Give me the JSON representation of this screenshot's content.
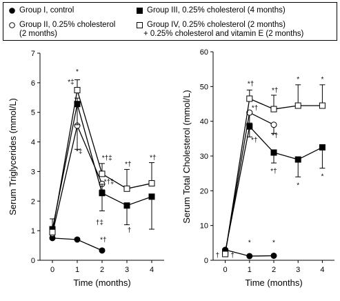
{
  "legend": {
    "items": [
      {
        "text": "Group I, control",
        "text2": "",
        "marker": "circle",
        "fill": "#000000"
      },
      {
        "text": "Group II, 0.25% cholesterol",
        "text2": "(2 months)",
        "marker": "circle",
        "fill": "#ffffff"
      },
      {
        "text": "Group III, 0.25% cholesterol (4 months)",
        "text2": "",
        "marker": "square",
        "fill": "#000000"
      },
      {
        "text": "Group IV, 0.25% cholesterol (2 months)",
        "text2": "+ 0.25% cholesterol and vitamin E (2 months)",
        "marker": "square",
        "fill": "#ffffff"
      }
    ]
  },
  "chart_data": [
    {
      "type": "line",
      "title": "",
      "xlabel": "Time (months)",
      "ylabel": "Serum Triglycerides (mmol/L)",
      "xlim": [
        -0.5,
        4.5
      ],
      "ylim": [
        0,
        7
      ],
      "xticks": [
        0,
        1,
        2,
        3,
        4
      ],
      "yticks": [
        0,
        1,
        2,
        3,
        4,
        5,
        6,
        7
      ],
      "grid": false,
      "series": [
        {
          "name": "Group I, control",
          "marker": "circle",
          "fill": "#000000",
          "x": [
            0,
            1,
            2
          ],
          "y": [
            0.75,
            0.7,
            0.33
          ],
          "err_up": [
            0.1,
            0.05,
            0.05
          ],
          "err_down": [
            0,
            0,
            0
          ]
        },
        {
          "name": "Group II, 0.25% cholesterol (2 months)",
          "marker": "circle",
          "fill": "#ffffff",
          "x": [
            0,
            1,
            2
          ],
          "y": [
            0.9,
            4.55,
            2.58
          ],
          "err_up": [
            0,
            0,
            0
          ],
          "err_down": [
            0.1,
            0.8,
            0.2
          ]
        },
        {
          "name": "Group III, 0.25% cholesterol (4 months)",
          "marker": "square",
          "fill": "#000000",
          "x": [
            0,
            1,
            2,
            3,
            4
          ],
          "y": [
            1.05,
            5.28,
            2.27,
            1.85,
            2.15
          ],
          "err_up": [
            0.35,
            0.2,
            0.3,
            0,
            0
          ],
          "err_down": [
            0,
            0.7,
            0.6,
            0.65,
            1.1
          ]
        },
        {
          "name": "Group IV, 0.25% cholesterol (2 months) + 0.25% cholesterol and vitamin E (2 months)",
          "marker": "square",
          "fill": "#ffffff",
          "x": [
            0,
            1,
            2,
            3,
            4
          ],
          "y": [
            0.95,
            5.75,
            2.92,
            2.42,
            2.6
          ],
          "err_up": [
            0,
            0.35,
            0.35,
            0.65,
            0.7
          ],
          "err_down": [
            0,
            0,
            0,
            0,
            0
          ]
        }
      ],
      "annotations": [
        {
          "x": 1,
          "y": 6.3,
          "text": "*"
        },
        {
          "x": 0.75,
          "y": 5.95,
          "text": "*‡"
        },
        {
          "x": 1.08,
          "y": 3.6,
          "text": "*‡"
        },
        {
          "x": 2.2,
          "y": 3.38,
          "text": "*†‡"
        },
        {
          "x": 2.28,
          "y": 2.58,
          "text": "*†‡"
        },
        {
          "x": 1.9,
          "y": 1.2,
          "text": "†‡"
        },
        {
          "x": 3.05,
          "y": 3.17,
          "text": "*†"
        },
        {
          "x": 3.1,
          "y": 0.95,
          "text": "†"
        },
        {
          "x": 4.05,
          "y": 3.4,
          "text": "*†"
        },
        {
          "x": 2.05,
          "y": 0.62,
          "text": "*†"
        }
      ]
    },
    {
      "type": "line",
      "title": "",
      "xlabel": "Time (months)",
      "ylabel": "Serum Total Cholesterol (mmol/L)",
      "xlim": [
        -0.5,
        4.5
      ],
      "ylim": [
        0,
        60
      ],
      "xticks": [
        0,
        1,
        2,
        3,
        4
      ],
      "yticks": [
        0,
        10,
        20,
        30,
        40,
        50,
        60
      ],
      "grid": false,
      "series": [
        {
          "name": "Group I, control",
          "marker": "circle",
          "fill": "#000000",
          "x": [
            0,
            1,
            2
          ],
          "y": [
            3.0,
            1.2,
            1.3
          ],
          "err_up": [
            0,
            0,
            0
          ],
          "err_down": [
            0,
            0,
            0
          ]
        },
        {
          "name": "Group II, 0.25% cholesterol (2 months)",
          "marker": "circle",
          "fill": "#ffffff",
          "x": [
            0,
            1,
            2
          ],
          "y": [
            2.0,
            42.5,
            39.0
          ],
          "err_up": [
            0,
            0,
            0
          ],
          "err_down": [
            0,
            3,
            2.5
          ]
        },
        {
          "name": "Group III, 0.25% cholesterol (4 months)",
          "marker": "square",
          "fill": "#000000",
          "x": [
            0,
            1,
            2,
            3,
            4
          ],
          "y": [
            2.5,
            38.5,
            31.0,
            29.0,
            32.5
          ],
          "err_up": [
            0,
            0,
            0,
            0,
            0
          ],
          "err_down": [
            0,
            3,
            3,
            5,
            6
          ]
        },
        {
          "name": "Group IV, 0.25% cholesterol (2 months) + 0.25% cholesterol and vitamin E (2 months)",
          "marker": "square",
          "fill": "#ffffff",
          "x": [
            0,
            1,
            2,
            3,
            4
          ],
          "y": [
            1.8,
            46.5,
            43.5,
            44.5,
            44.5
          ],
          "err_up": [
            0,
            2.5,
            4,
            6,
            6
          ],
          "err_down": [
            0,
            0,
            0,
            0,
            0
          ]
        }
      ],
      "annotations": [
        {
          "x": 1.05,
          "y": 50.2,
          "text": "*†"
        },
        {
          "x": 1.22,
          "y": 43.2,
          "text": "*†"
        },
        {
          "x": 1.2,
          "y": 34.0,
          "text": "*†"
        },
        {
          "x": 2.05,
          "y": 48.3,
          "text": "*†"
        },
        {
          "x": 2.05,
          "y": 35.3,
          "text": "*†"
        },
        {
          "x": 2.0,
          "y": 25.0,
          "text": "*†"
        },
        {
          "x": 3,
          "y": 51.5,
          "text": "*"
        },
        {
          "x": 3,
          "y": 21.0,
          "text": "*"
        },
        {
          "x": 4,
          "y": 51.5,
          "text": "*"
        },
        {
          "x": 4,
          "y": 23.5,
          "text": "*"
        },
        {
          "x": 1,
          "y": 4.5,
          "text": "*"
        },
        {
          "x": 2,
          "y": 4.5,
          "text": "*"
        },
        {
          "x": -0.32,
          "y": 0.8,
          "text": "†"
        },
        {
          "x": 0.3,
          "y": 0.8,
          "text": "†"
        }
      ]
    }
  ]
}
